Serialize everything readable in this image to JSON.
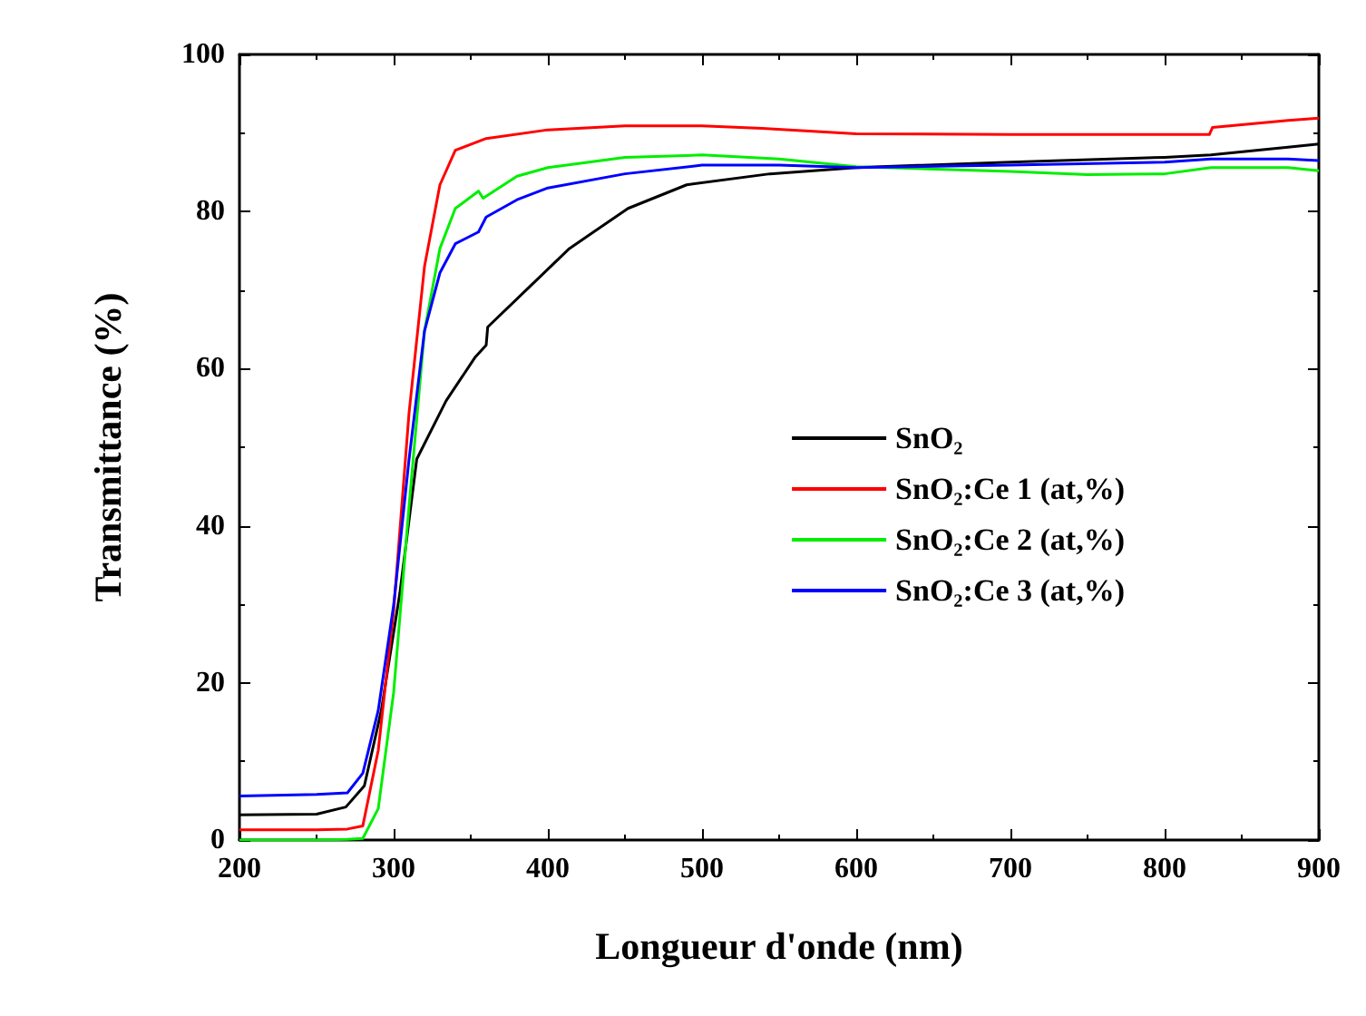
{
  "chart_data": {
    "type": "line",
    "xlabel": "Longueur d'onde (nm)",
    "ylabel": "Transmittance (%)",
    "xlim": [
      200,
      900
    ],
    "xticks": [
      200,
      300,
      400,
      500,
      600,
      700,
      800,
      900
    ],
    "ylim": [
      0,
      100
    ],
    "yticks": [
      0,
      20,
      40,
      60,
      80,
      100
    ],
    "grid": false,
    "legend": "right",
    "marker": "none",
    "line_style": "solid",
    "series": [
      {
        "name": "SnO₂",
        "color": "#000000",
        "x": [
          200,
          250,
          269,
          281,
          292,
          304,
          315,
          334,
          353,
          360,
          361,
          388,
          414,
          452,
          490,
          544,
          600,
          700,
          800,
          830,
          880,
          900
        ],
        "values": [
          3.2,
          3.3,
          4.2,
          6.9,
          16.5,
          31.4,
          48.5,
          55.9,
          61.5,
          63,
          65.3,
          70.4,
          75.3,
          80.4,
          83.4,
          84.8,
          85.6,
          86.3,
          86.9,
          87.2,
          88.2,
          88.6
        ]
      },
      {
        "name": "SnO₂:Ce 1 (at,%)",
        "color": "#ff0000",
        "x": [
          200,
          250,
          270,
          280,
          290,
          300,
          310,
          320,
          330,
          340,
          360,
          400,
          450,
          500,
          539,
          600,
          700,
          800,
          829,
          831,
          880,
          900
        ],
        "values": [
          1.3,
          1.3,
          1.4,
          1.8,
          11.4,
          29.2,
          54.4,
          73,
          83.4,
          87.8,
          89.3,
          90.4,
          90.9,
          90.9,
          90.6,
          89.9,
          89.8,
          89.8,
          89.8,
          90.7,
          91.6,
          91.9
        ]
      },
      {
        "name": "SnO₂:Ce 2 (at,%)",
        "color": "#00ee00",
        "x": [
          200,
          250,
          270,
          280,
          290,
          300,
          310,
          320,
          330,
          340,
          355,
          358,
          380,
          400,
          450,
          500,
          550,
          600,
          700,
          750,
          800,
          830,
          880,
          900
        ],
        "values": [
          0,
          0,
          0.1,
          0.2,
          4,
          18.8,
          42.5,
          64.8,
          75.3,
          80.4,
          82.6,
          81.7,
          84.5,
          85.6,
          86.9,
          87.2,
          86.7,
          85.7,
          85.1,
          84.7,
          84.8,
          85.6,
          85.6,
          85.2
        ]
      },
      {
        "name": "SnO₂:Ce 3 (at,%)",
        "color": "#0000ff",
        "x": [
          200,
          250,
          270,
          280,
          290,
          300,
          310,
          320,
          330,
          340,
          355,
          360,
          380,
          400,
          450,
          500,
          550,
          600,
          700,
          800,
          830,
          880,
          900
        ],
        "values": [
          5.6,
          5.8,
          6,
          8.5,
          16.5,
          29.9,
          48.5,
          64.8,
          72.2,
          75.9,
          77.4,
          79.3,
          81.5,
          83,
          84.8,
          85.9,
          85.9,
          85.6,
          85.9,
          86.3,
          86.7,
          86.7,
          86.5
        ]
      }
    ]
  }
}
